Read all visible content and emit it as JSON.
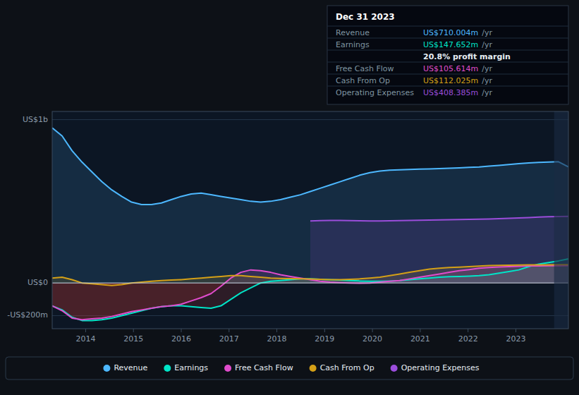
{
  "chart_data": {
    "type": "area",
    "x": [
      2013.3,
      2013.507692,
      2013.715385,
      2013.923077,
      2014.130769,
      2014.338462,
      2014.546154,
      2014.753846,
      2014.961538,
      2015.169231,
      2015.376923,
      2015.584615,
      2015.792308,
      2016.0,
      2016.207692,
      2016.415385,
      2016.623077,
      2016.830769,
      2017.038462,
      2017.246154,
      2017.453846,
      2017.661538,
      2017.869231,
      2018.076923,
      2018.284615,
      2018.492308,
      2018.7,
      2018.907692,
      2019.115385,
      2019.323077,
      2019.530769,
      2019.738462,
      2019.946154,
      2020.153846,
      2020.361538,
      2020.569231,
      2020.776923,
      2020.984615,
      2021.192308,
      2021.4,
      2021.607692,
      2021.815385,
      2022.023077,
      2022.230769,
      2022.438462,
      2022.646154,
      2022.853846,
      2023.061538,
      2023.269231,
      2023.476923,
      2023.684615,
      2023.892308,
      2024.1
    ],
    "series": [
      {
        "name": "Revenue",
        "color": "#4db8ff",
        "values": [
          950,
          900,
          810,
          740,
          680,
          620,
          570,
          530,
          495,
          480,
          480,
          490,
          510,
          530,
          545,
          550,
          540,
          530,
          520,
          510,
          500,
          495,
          500,
          510,
          525,
          540,
          560,
          580,
          600,
          620,
          640,
          660,
          675,
          685,
          690,
          693,
          695,
          697,
          698,
          700,
          702,
          705,
          708,
          710,
          715,
          720,
          725,
          730,
          735,
          738,
          740,
          742,
          710
        ]
      },
      {
        "name": "Earnings",
        "color": "#00e5c8",
        "values": [
          -140,
          -165,
          -210,
          -230,
          -230,
          -225,
          -215,
          -200,
          -185,
          -170,
          -155,
          -145,
          -140,
          -140,
          -145,
          -150,
          -155,
          -140,
          -100,
          -60,
          -30,
          0,
          10,
          15,
          20,
          25,
          25,
          22,
          20,
          18,
          15,
          12,
          10,
          10,
          12,
          15,
          20,
          25,
          30,
          35,
          38,
          40,
          42,
          45,
          50,
          60,
          70,
          80,
          100,
          115,
          125,
          135,
          148
        ]
      },
      {
        "name": "Free Cash Flow",
        "color": "#e04ccc",
        "values": [
          -140,
          -170,
          -215,
          -225,
          -220,
          -215,
          -205,
          -190,
          -175,
          -165,
          -155,
          -145,
          -140,
          -130,
          -110,
          -90,
          -65,
          -20,
          30,
          65,
          80,
          75,
          65,
          50,
          40,
          30,
          20,
          10,
          5,
          2,
          0,
          -2,
          0,
          5,
          10,
          15,
          25,
          35,
          45,
          55,
          65,
          75,
          82,
          90,
          95,
          98,
          100,
          102,
          104,
          104,
          105,
          105,
          106
        ]
      },
      {
        "name": "Cash From Op",
        "color": "#d4a017",
        "values": [
          30,
          35,
          20,
          0,
          -5,
          -10,
          -15,
          -10,
          0,
          5,
          10,
          15,
          18,
          20,
          25,
          30,
          35,
          40,
          45,
          45,
          40,
          35,
          30,
          28,
          27,
          25,
          24,
          22,
          20,
          20,
          22,
          25,
          30,
          35,
          45,
          55,
          65,
          75,
          85,
          90,
          95,
          97,
          100,
          103,
          106,
          108,
          109,
          110,
          111,
          111,
          111,
          112,
          112
        ]
      },
      {
        "name": "Operating Expenses",
        "color": "#9b4ddb",
        "values": [
          null,
          null,
          null,
          null,
          null,
          null,
          null,
          null,
          null,
          null,
          null,
          null,
          null,
          null,
          null,
          null,
          null,
          null,
          null,
          null,
          null,
          null,
          null,
          null,
          null,
          null,
          380,
          382,
          383,
          383,
          382,
          381,
          380,
          380,
          381,
          382,
          383,
          384,
          385,
          386,
          387,
          388,
          389,
          390,
          392,
          394,
          396,
          398,
          400,
          403,
          405,
          407,
          408
        ]
      }
    ],
    "xlim": [
      2013.3,
      2024.1
    ],
    "xticks": [
      2014,
      2015,
      2016,
      2017,
      2018,
      2019,
      2020,
      2021,
      2022,
      2023
    ],
    "ylim": [
      -280,
      1050
    ],
    "yticks": [
      {
        "value": 1000,
        "label": "US$1b"
      },
      {
        "value": 0,
        "label": "US$0"
      },
      {
        "value": -200,
        "label": "-US$200m"
      }
    ],
    "grid": true,
    "legend": "bottom",
    "shaded_x": [
      2023.8,
      2024.1
    ],
    "annotations": [
      {
        "text": "Dec 31 2023"
      },
      {
        "label": "Revenue",
        "text": "US$710.004m",
        "unit": "/yr",
        "color": "#4db8ff"
      },
      {
        "label": "Earnings",
        "text": "US$147.652m",
        "unit": "/yr",
        "color": "#00e5c8"
      },
      {
        "text": "20.8% profit margin"
      },
      {
        "label": "Free Cash Flow",
        "text": "US$105.614m",
        "unit": "/yr",
        "color": "#e04ccc"
      },
      {
        "label": "Cash From Op",
        "text": "US$112.025m",
        "unit": "/yr",
        "color": "#d4a017"
      },
      {
        "label": "Operating Expenses",
        "text": "US$408.385m",
        "unit": "/yr",
        "color": "#9b4ddb"
      }
    ]
  }
}
